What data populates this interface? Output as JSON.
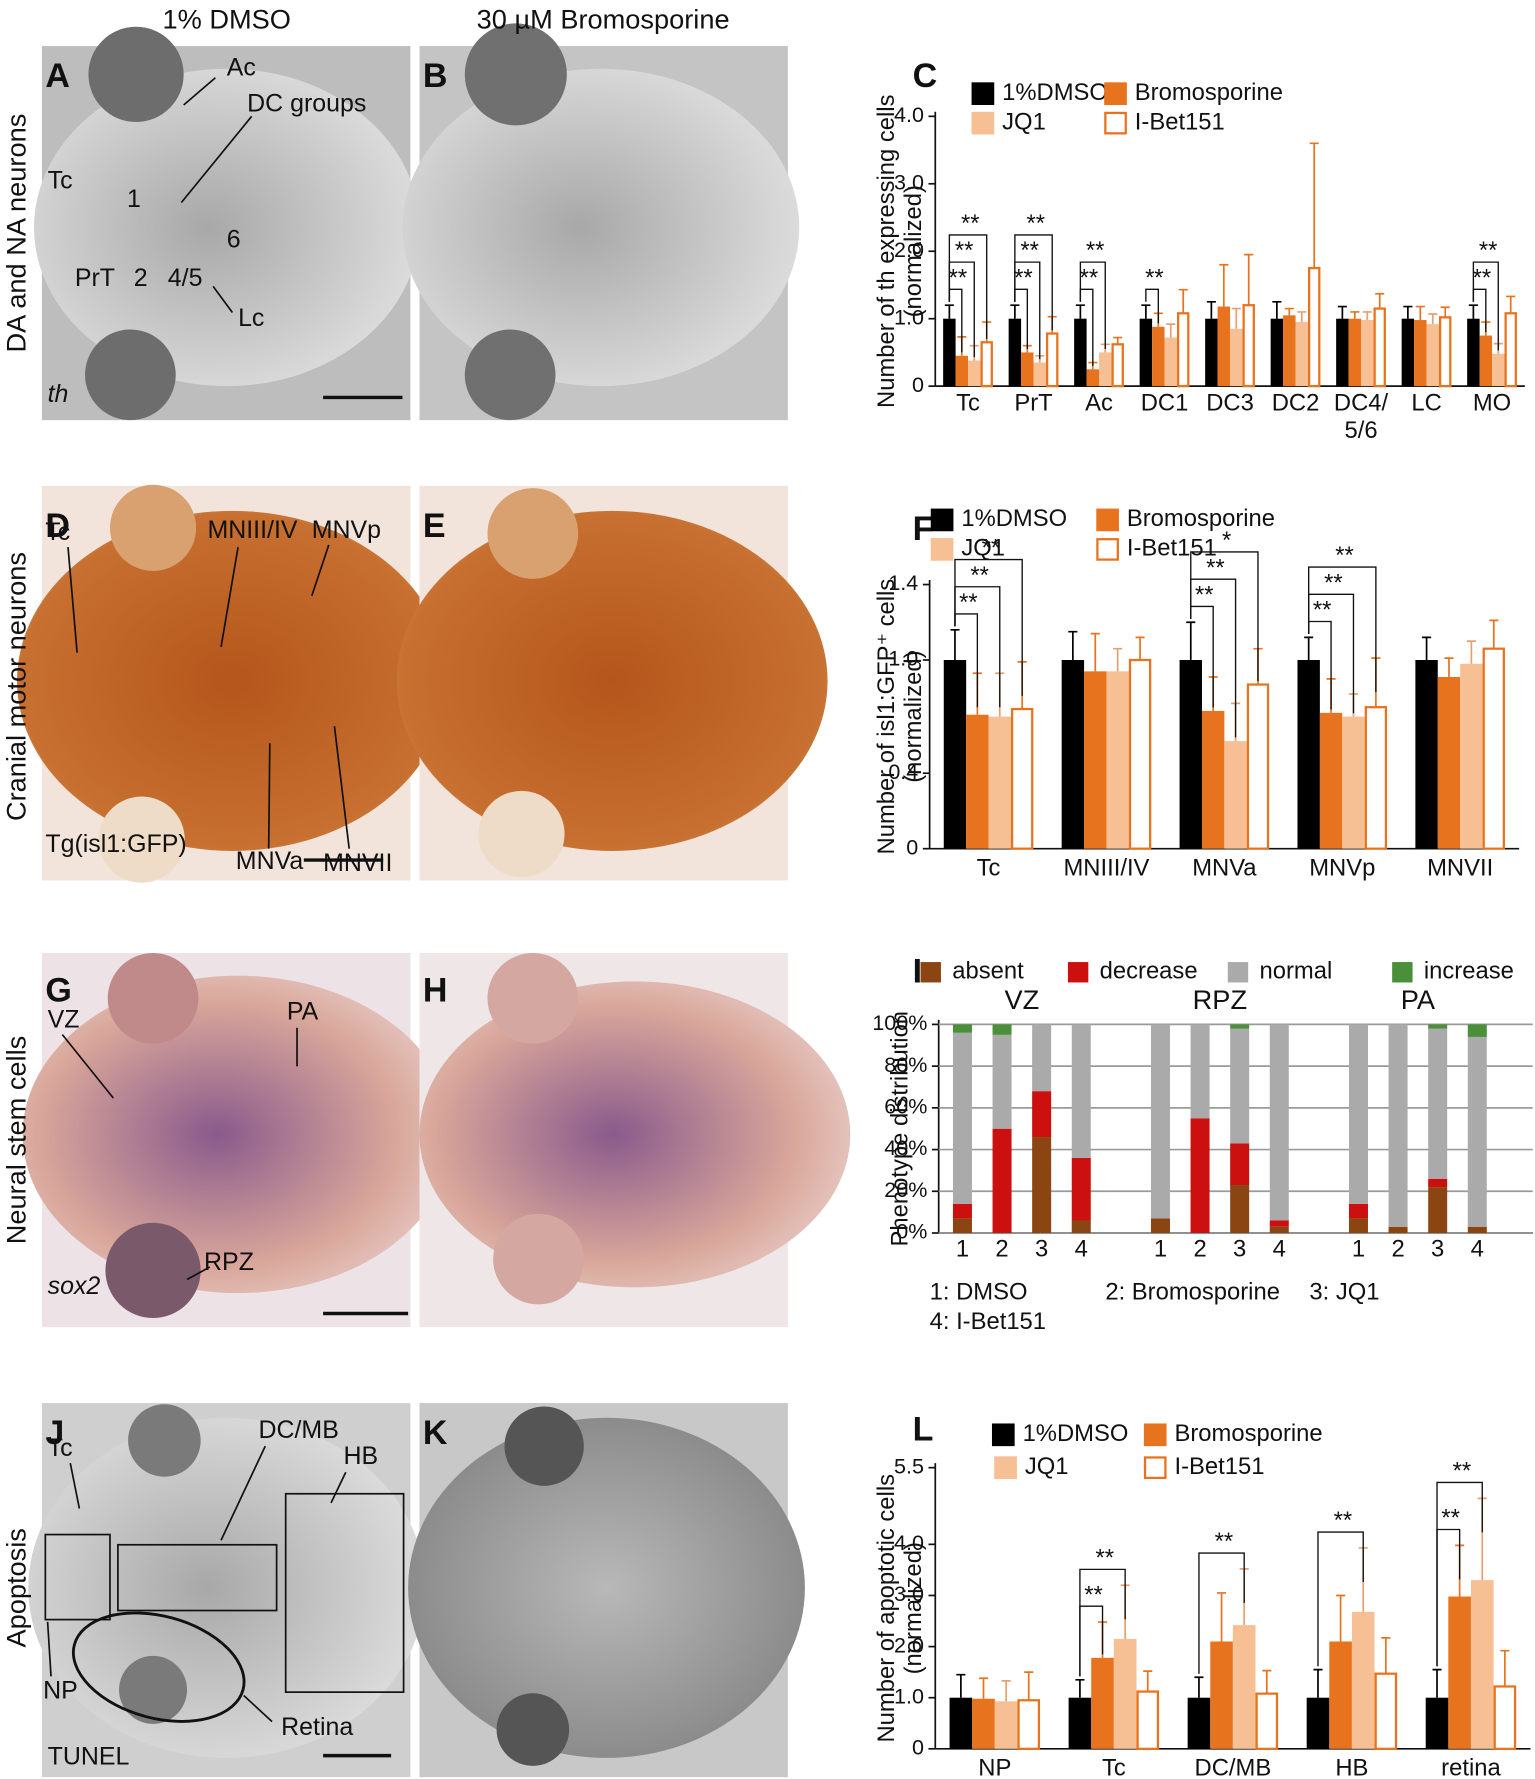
{
  "figure": {
    "column_headers": [
      "1% DMSO",
      "30 µM Bromosporine"
    ],
    "row_labels": [
      "DA and NA neurons",
      "Cranial motor neurons",
      "Neural stem cells",
      "Apoptosis"
    ],
    "panel_letters": [
      "A",
      "B",
      "C",
      "D",
      "E",
      "F",
      "G",
      "H",
      "I",
      "J",
      "K",
      "L"
    ],
    "annotations": {
      "A": [
        "Ac",
        "DC groups",
        "Tc",
        "1",
        "6",
        "PrT",
        "2",
        "4/5",
        "Lc",
        "th"
      ],
      "D": [
        "Tc",
        "MNIII/IV",
        "MNVp",
        "MNVa",
        "MNVII",
        "Tg(isl1:GFP)"
      ],
      "G": [
        "VZ",
        "PA",
        "RPZ",
        "sox2"
      ],
      "J": [
        "Tc",
        "DC/MB",
        "HB",
        "NP",
        "Retina",
        "TUNEL"
      ]
    }
  },
  "chart_data": [
    {
      "type": "bar",
      "ylabel": [
        "Number of th expressing cells",
        "(normalized)"
      ],
      "categories": [
        "Tc",
        "PrT",
        "Ac",
        "DC1",
        "DC3",
        "DC2",
        [
          "DC4/",
          "5/6"
        ],
        "LC",
        "MO"
      ],
      "ylim": [
        0,
        4
      ],
      "yticks": [
        0,
        {
          "value": 1,
          "label": "1.0"
        },
        {
          "value": 2,
          "label": "2.0"
        },
        {
          "value": 3,
          "label": "3.0"
        },
        {
          "value": 4,
          "label": "4.0"
        }
      ],
      "series": [
        {
          "name": "1%DMSO",
          "color": "#000000",
          "values": [
            1,
            1,
            1,
            1,
            1,
            1,
            1,
            1,
            1
          ],
          "errors": [
            0.2,
            0.2,
            0.2,
            0.2,
            0.25,
            0.25,
            0.18,
            0.18,
            0.2
          ]
        },
        {
          "name": "Bromosporine",
          "color": "#e8731e",
          "values": [
            0.45,
            0.5,
            0.25,
            0.88,
            1.18,
            1.05,
            1,
            0.98,
            0.75
          ],
          "errors": [
            0.28,
            0.1,
            0.1,
            0.2,
            0.62,
            0.1,
            0.1,
            0.2,
            0.2
          ]
        },
        {
          "name": "JQ1",
          "color": "#f7bf94",
          "values": [
            0.38,
            0.35,
            0.5,
            0.72,
            0.85,
            0.95,
            0.98,
            0.92,
            0.48
          ],
          "errors": [
            0.22,
            0.1,
            0.12,
            0.2,
            0.3,
            0.15,
            0.12,
            0.15,
            0.15
          ]
        },
        {
          "name": "I-Bet151",
          "color": "#e8731e",
          "hollow": true,
          "values": [
            0.65,
            0.78,
            0.62,
            1.08,
            1.2,
            1.75,
            1.15,
            1.02,
            1.08
          ],
          "errors": [
            0.3,
            0.25,
            0.1,
            0.35,
            0.75,
            1.85,
            0.22,
            0.15,
            0.25
          ]
        }
      ],
      "significance": [
        {
          "category": 0,
          "series": [
            1,
            2,
            3
          ],
          "labels": [
            "**",
            "**",
            "**"
          ]
        },
        {
          "category": 1,
          "series": [
            1,
            2,
            3
          ],
          "labels": [
            "**",
            "**",
            "**"
          ]
        },
        {
          "category": 2,
          "series": [
            1,
            2
          ],
          "labels": [
            "**",
            "**"
          ]
        },
        {
          "category": 3,
          "series": [
            1
          ],
          "labels": [
            "**"
          ]
        },
        {
          "category": 8,
          "series": [
            1,
            2
          ],
          "labels": [
            "**",
            "**"
          ]
        }
      ]
    },
    {
      "type": "bar",
      "ylabel": [
        "Number of isl1:GFP⁺ cells",
        "(normalized)"
      ],
      "categories": [
        "Tc",
        "MNIII/IV",
        "MNVa",
        "MNVp",
        "MNVII"
      ],
      "ylim": [
        0,
        1.4
      ],
      "yticks": [
        0,
        0.4,
        {
          "value": 1,
          "label": "1.0"
        },
        1.4
      ],
      "series": [
        {
          "name": "1%DMSO",
          "color": "#000000",
          "values": [
            1,
            1,
            1,
            1,
            1
          ],
          "errors": [
            0.16,
            0.15,
            0.2,
            0.12,
            0.12
          ]
        },
        {
          "name": "Bromosporine",
          "color": "#e8731e",
          "values": [
            0.71,
            0.94,
            0.73,
            0.72,
            0.91
          ],
          "errors": [
            0.22,
            0.2,
            0.18,
            0.18,
            0.1
          ]
        },
        {
          "name": "JQ1",
          "color": "#f7bf94",
          "values": [
            0.7,
            0.94,
            0.57,
            0.7,
            0.98
          ],
          "errors": [
            0.23,
            0.12,
            0.2,
            0.12,
            0.12
          ]
        },
        {
          "name": "I-Bet151",
          "color": "#e8731e",
          "hollow": true,
          "values": [
            0.74,
            1,
            0.87,
            0.75,
            1.06
          ],
          "errors": [
            0.25,
            0.12,
            0.19,
            0.26,
            0.15
          ]
        }
      ],
      "significance": [
        {
          "category": 0,
          "series": [
            1,
            2,
            3
          ],
          "labels": [
            "**",
            "**",
            "**"
          ]
        },
        {
          "category": 2,
          "series": [
            1,
            2,
            3
          ],
          "labels": [
            "**",
            "**",
            "*"
          ]
        },
        {
          "category": 3,
          "series": [
            1,
            2,
            3
          ],
          "labels": [
            "**",
            "**",
            "**"
          ]
        }
      ]
    },
    {
      "type": "stacked_bar",
      "ylabel": [
        "Phenotype distribution"
      ],
      "groups": [
        "VZ",
        "RPZ",
        "PA"
      ],
      "categories": [
        "1",
        "2",
        "3",
        "4",
        "1",
        "2",
        "3",
        "4",
        "1",
        "2",
        "3",
        "4"
      ],
      "ylim": [
        0,
        100
      ],
      "grid": true,
      "yticks": [
        {
          "value": 0,
          "label": "0%"
        },
        {
          "value": 20,
          "label": "20%"
        },
        {
          "value": 40,
          "label": "40%"
        },
        {
          "value": 60,
          "label": "60%"
        },
        {
          "value": 80,
          "label": "80%"
        },
        {
          "value": 100,
          "label": "100%"
        }
      ],
      "series": [
        {
          "name": "absent",
          "color": "#8b4513",
          "values": [
            7,
            0,
            46,
            6,
            7,
            0,
            23,
            3,
            7,
            3,
            22,
            3
          ]
        },
        {
          "name": "decrease",
          "color": "#cc1010",
          "values": [
            7,
            50,
            22,
            30,
            0,
            55,
            20,
            3,
            7,
            0,
            4,
            0
          ]
        },
        {
          "name": "normal",
          "color": "#aaaaaa",
          "values": [
            82,
            45,
            32,
            64,
            93,
            45,
            55,
            94,
            86,
            97,
            72,
            91
          ]
        },
        {
          "name": "increase",
          "color": "#4a8f3a",
          "values": [
            4,
            5,
            0,
            0,
            0,
            0,
            2,
            0,
            0,
            0,
            2,
            6
          ]
        }
      ],
      "notes": [
        "1:  DMSO",
        "2:  Bromosporine",
        "3: JQ1",
        "4:  I-Bet151"
      ]
    },
    {
      "type": "bar",
      "ylabel": [
        "Number of apoptotic cells",
        "(normalized)"
      ],
      "categories": [
        "NP",
        "Tc",
        "DC/MB",
        "HB",
        "retina"
      ],
      "ylim": [
        0,
        5.5
      ],
      "yticks": [
        0,
        {
          "value": 1,
          "label": "1.0"
        },
        {
          "value": 2,
          "label": "2.0"
        },
        {
          "value": 3,
          "label": "3.0"
        },
        {
          "value": 4,
          "label": "4.0"
        },
        5.5
      ],
      "series": [
        {
          "name": "1%DMSO",
          "color": "#000000",
          "values": [
            1,
            1,
            1,
            1,
            1
          ],
          "errors": [
            0.45,
            0.35,
            0.4,
            0.55,
            0.55
          ]
        },
        {
          "name": "Bromosporine",
          "color": "#e8731e",
          "values": [
            0.98,
            1.78,
            2.1,
            2.1,
            2.98
          ],
          "errors": [
            0.4,
            0.7,
            0.95,
            0.9,
            1
          ]
        },
        {
          "name": "JQ1",
          "color": "#f7bf94",
          "values": [
            0.93,
            2.15,
            2.42,
            2.68,
            3.3
          ],
          "errors": [
            0.4,
            1.05,
            1.1,
            1.25,
            1.6
          ]
        },
        {
          "name": "I-Bet151",
          "color": "#e8731e",
          "hollow": true,
          "values": [
            0.95,
            1.12,
            1.08,
            1.47,
            1.22
          ],
          "errors": [
            0.55,
            0.4,
            0.45,
            0.7,
            0.7
          ]
        }
      ],
      "significance": [
        {
          "category": 1,
          "series": [
            1,
            2
          ],
          "labels": [
            "**",
            "**"
          ]
        },
        {
          "category": 2,
          "series": [
            2
          ],
          "labels": [
            "**"
          ]
        },
        {
          "category": 3,
          "series": [
            2
          ],
          "labels": [
            "**"
          ]
        },
        {
          "category": 4,
          "series": [
            1,
            2
          ],
          "labels": [
            "**",
            "**"
          ]
        }
      ]
    }
  ]
}
